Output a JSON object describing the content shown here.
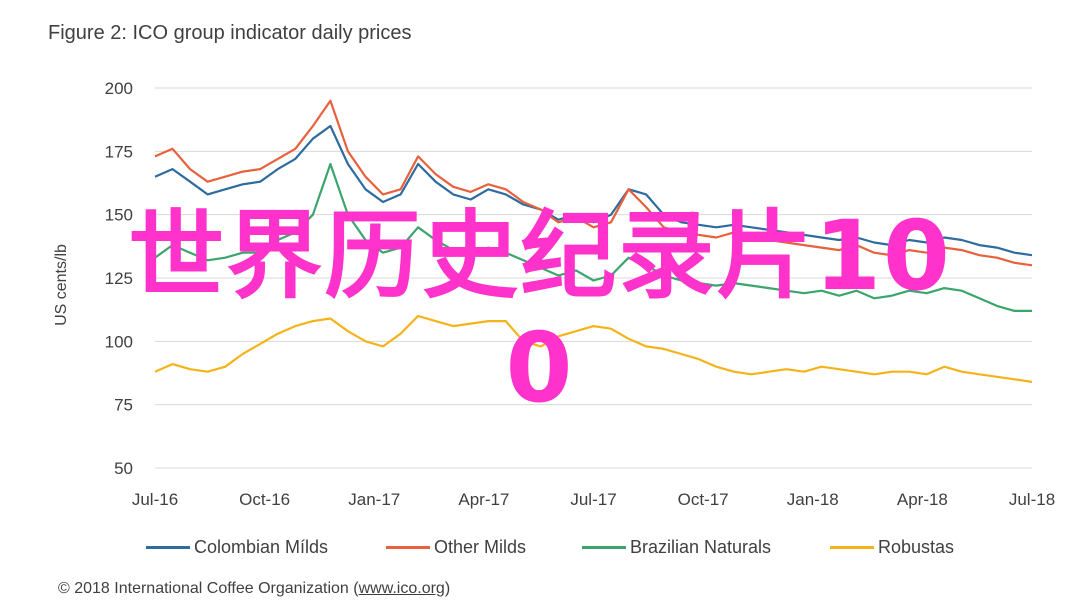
{
  "title": "Figure 2: ICO group indicator daily prices",
  "overlay_text": {
    "line1": "世界历史纪录片10",
    "line2": "0",
    "color": "#ff33cc"
  },
  "footer": {
    "prefix": "© 2018 International Coffee Organization (",
    "link": "www.ico.org",
    "suffix": ")"
  },
  "chart_data": {
    "type": "line",
    "ylabel": "US cents/lb",
    "ylim": [
      50,
      200
    ],
    "yticks": [
      50,
      75,
      100,
      125,
      150,
      175,
      200
    ],
    "xlabels": [
      "Jul-16",
      "Oct-16",
      "Jan-17",
      "Apr-17",
      "Jul-17",
      "Oct-17",
      "Jan-18",
      "Apr-18",
      "Jul-18"
    ],
    "grid": true,
    "legend_position": "bottom",
    "x": [
      0,
      0.5,
      1,
      1.5,
      2,
      2.5,
      3,
      3.5,
      4,
      4.5,
      5,
      5.5,
      6,
      6.5,
      7,
      7.5,
      8,
      8.5,
      9,
      9.5,
      10,
      10.5,
      11,
      11.5,
      12,
      12.5,
      13,
      13.5,
      14,
      14.5,
      15,
      15.5,
      16,
      16.5,
      17,
      17.5,
      18,
      18.5,
      19,
      19.5,
      20,
      20.5,
      21,
      21.5,
      22,
      22.5,
      23,
      23.5,
      24,
      24.5,
      25
    ],
    "series": [
      {
        "name": "Colombian Mílds",
        "color": "#2e6b9e",
        "values": [
          165,
          168,
          163,
          158,
          160,
          162,
          163,
          168,
          172,
          180,
          185,
          170,
          160,
          155,
          158,
          170,
          163,
          158,
          156,
          160,
          158,
          154,
          152,
          148,
          150,
          147,
          150,
          160,
          158,
          150,
          147,
          146,
          145,
          146,
          145,
          144,
          143,
          142,
          141,
          140,
          141,
          139,
          138,
          140,
          139,
          141,
          140,
          138,
          137,
          135,
          134
        ]
      },
      {
        "name": "Other Milds",
        "color": "#e8603c",
        "values": [
          173,
          176,
          168,
          163,
          165,
          167,
          168,
          172,
          176,
          185,
          195,
          175,
          165,
          158,
          160,
          173,
          166,
          161,
          159,
          162,
          160,
          155,
          152,
          147,
          149,
          145,
          147,
          160,
          153,
          145,
          143,
          142,
          141,
          143,
          142,
          140,
          139,
          138,
          137,
          136,
          138,
          135,
          134,
          136,
          135,
          137,
          136,
          134,
          133,
          131,
          130
        ]
      },
      {
        "name": "Brazilian Naturals",
        "color": "#3aa56c",
        "values": [
          133,
          138,
          135,
          132,
          133,
          135,
          135,
          140,
          143,
          150,
          170,
          150,
          140,
          135,
          137,
          145,
          140,
          136,
          134,
          137,
          135,
          132,
          129,
          126,
          128,
          124,
          126,
          133,
          130,
          126,
          124,
          123,
          122,
          123,
          122,
          121,
          120,
          119,
          120,
          118,
          120,
          117,
          118,
          120,
          119,
          121,
          120,
          117,
          114,
          112,
          112
        ]
      },
      {
        "name": "Robustas",
        "color": "#f5b31a",
        "values": [
          88,
          91,
          89,
          88,
          90,
          95,
          99,
          103,
          106,
          108,
          109,
          104,
          100,
          98,
          103,
          110,
          108,
          106,
          107,
          108,
          108,
          100,
          98,
          102,
          104,
          106,
          105,
          101,
          98,
          97,
          95,
          93,
          90,
          88,
          87,
          88,
          89,
          88,
          90,
          89,
          88,
          87,
          88,
          88,
          87,
          90,
          88,
          87,
          86,
          85,
          84
        ]
      }
    ]
  }
}
